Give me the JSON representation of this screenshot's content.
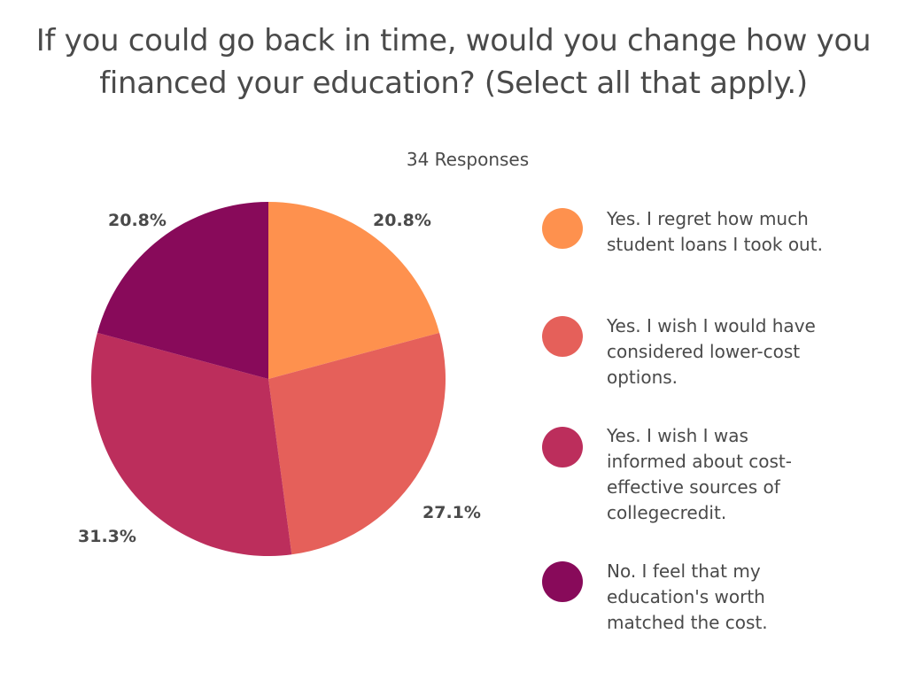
{
  "chart_data": {
    "type": "pie",
    "title": "If you could go back in time, would you change how you financed your education? (Select all that apply.)",
    "title_lines": [
      "If you could go back in time, would you change how you",
      "financed your education? (Select all that apply.)"
    ],
    "subtitle": "34 Responses",
    "legend_position": "right",
    "slices": [
      {
        "label": "Yes. I regret how much student loans I took out.",
        "label_lines": [
          "Yes. I regret how much",
          "student loans I took out."
        ],
        "value": 20.8,
        "display": "20.8%",
        "color": "#FE914E"
      },
      {
        "label": "Yes. I wish I would have considered lower-cost options.",
        "label_lines": [
          "Yes. I wish I would have",
          "considered lower-cost",
          "options."
        ],
        "value": 27.1,
        "display": "27.1%",
        "color": "#E5605A"
      },
      {
        "label": "Yes. I wish I was informed about cost-effective sources of collegecredit.",
        "label_lines": [
          "Yes. I wish I was",
          "informed about cost-",
          "effective sources of",
          "collegecredit."
        ],
        "value": 31.3,
        "display": "31.3%",
        "color": "#BC2E5C"
      },
      {
        "label": "No. I feel that my education's worth matched the cost.",
        "label_lines": [
          "No. I feel that my",
          "education's worth",
          "matched the cost."
        ],
        "value": 20.8,
        "display": "20.8%",
        "color": "#880A5A"
      }
    ]
  }
}
